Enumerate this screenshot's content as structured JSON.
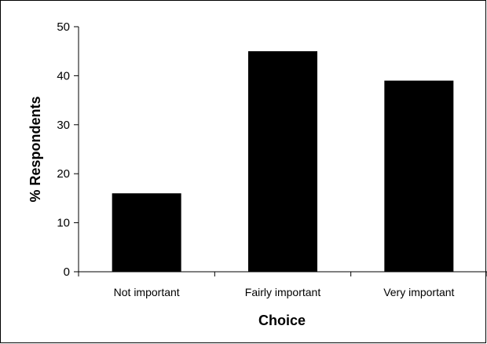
{
  "chart_data": {
    "type": "bar",
    "categories": [
      "Not important",
      "Fairly important",
      "Very important"
    ],
    "values": [
      16,
      45,
      39
    ],
    "title": "",
    "xlabel": "Choice",
    "ylabel": "% Respondents",
    "ylim": [
      0,
      50
    ],
    "yticks": [
      0,
      10,
      20,
      30,
      40,
      50
    ],
    "yticklabels": [
      "0",
      "10",
      "20",
      "30",
      "40",
      "50"
    ],
    "grid": false,
    "legend": "none",
    "colors": {
      "bar": "#000000",
      "axis": "#000000",
      "background": "#ffffff"
    }
  }
}
